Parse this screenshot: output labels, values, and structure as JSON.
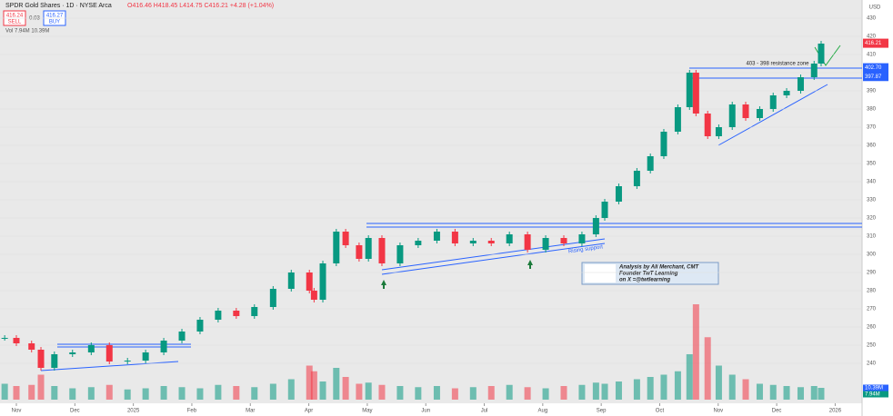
{
  "header": {
    "symbol": "SPDR Gold Shares · 1D · NYSE Arca",
    "ohlc": "O416.46 H418.45 L414.75 C416.21 +4.28 (+1.04%)",
    "sell_price": "416.24",
    "sell": "SELL",
    "spread": "0.03",
    "buy_price": "416.27",
    "buy": "BUY",
    "volume_line": "Vol 7.94M 10.39M",
    "currency": "USD"
  },
  "chart_data": {
    "type": "candlestick",
    "x": [
      -0.2,
      0,
      0.26,
      0.42,
      0.65,
      0.96,
      1.28,
      1.59,
      1.9,
      2.21,
      2.52,
      2.83,
      3.14,
      3.45,
      3.76,
      4.07,
      4.39,
      4.7,
      5.01,
      5.09,
      5.24,
      5.47,
      5.63,
      5.86,
      6.02,
      6.25,
      6.56,
      6.87,
      7.19,
      7.5,
      7.81,
      8.12,
      8.43,
      8.74,
      9.05,
      9.36,
      9.67,
      9.91,
      10.06,
      10.3,
      10.61,
      10.84,
      11.07,
      11.31,
      11.51,
      11.62,
      11.82,
      12.01,
      12.24,
      12.47,
      12.71,
      12.94,
      13.17,
      13.41,
      13.64,
      13.76
    ],
    "series": [
      {
        "name": "GLD",
        "up_color": "#089981",
        "down_color": "#f23645",
        "values": [
          254,
          251,
          247.5,
          237.5,
          245,
          246,
          250,
          241,
          241.5,
          246,
          252.5,
          257.5,
          264,
          269,
          266,
          271,
          281,
          290,
          280,
          275,
          295,
          312.5,
          305,
          297.5,
          309,
          295,
          305,
          307.5,
          312.5,
          306,
          307.5,
          306,
          311,
          302.5,
          309,
          306,
          311,
          320,
          329,
          337.5,
          346,
          354,
          367.5,
          381,
          400,
          377.5,
          365,
          370,
          382.5,
          375,
          380,
          387.5,
          390,
          397.5,
          405,
          416
        ]
      }
    ],
    "volume": [
      14,
      12,
      13,
      22,
      12,
      10,
      11,
      13,
      9,
      10,
      12,
      11,
      10,
      13,
      12,
      11,
      14,
      18,
      30,
      25,
      16,
      28,
      20,
      14,
      15,
      13,
      12,
      11,
      12,
      10,
      11,
      12,
      13,
      11,
      10,
      12,
      13,
      15,
      14,
      16,
      18,
      20,
      22,
      25,
      40,
      84,
      55,
      30,
      22,
      18,
      14,
      13,
      12,
      11,
      12,
      10.39
    ],
    "xlim": [
      -0.28,
      14.46
    ],
    "xticks": [
      {
        "value": 0,
        "label": "Nov"
      },
      {
        "value": 1,
        "label": "Dec"
      },
      {
        "value": 2,
        "label": "2025"
      },
      {
        "value": 3,
        "label": "Feb"
      },
      {
        "value": 4,
        "label": "Mar"
      },
      {
        "value": 5,
        "label": "Apr"
      },
      {
        "value": 6,
        "label": "May"
      },
      {
        "value": 7,
        "label": "Jun"
      },
      {
        "value": 8,
        "label": "Jul"
      },
      {
        "value": 9,
        "label": "Aug"
      },
      {
        "value": 10,
        "label": "Sep"
      },
      {
        "value": 11,
        "label": "Oct"
      },
      {
        "value": 12,
        "label": "Nov"
      },
      {
        "value": 13,
        "label": "Dec"
      },
      {
        "value": 14,
        "label": "2026"
      }
    ],
    "ylim": [
      220,
      440
    ],
    "yticks": [
      240,
      250,
      260,
      270,
      280,
      290,
      300,
      310,
      320,
      330,
      340,
      350,
      360,
      370,
      380,
      390,
      400,
      410,
      420,
      430
    ],
    "price_badges": [
      {
        "value": 416.21,
        "color": "#f23645"
      },
      {
        "value": 402.7,
        "label": "402.70",
        "color": "#2962ff"
      },
      {
        "value": 397.87,
        "color": "#2962ff"
      }
    ],
    "volume_badges": [
      "10.39M",
      "7.94M"
    ],
    "annotations": {
      "resistance": "403 - 398 resistance zone",
      "support": "Rising support",
      "credit": [
        "Analysis by Ali Merchant, CMT",
        "Founder TwT Learning",
        "on X =@twtlearning"
      ]
    }
  }
}
